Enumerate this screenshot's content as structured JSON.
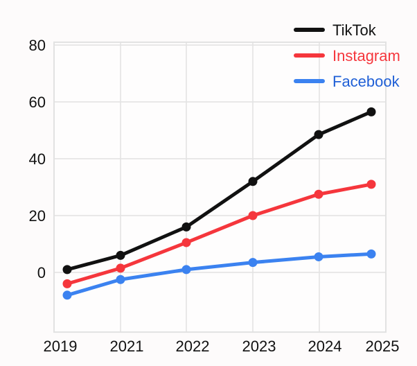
{
  "chart_data": {
    "type": "line",
    "title": "",
    "xlabel": "",
    "ylabel": "",
    "categories": [
      "2019",
      "2021",
      "2022",
      "2023",
      "2024",
      "2025"
    ],
    "y_ticks": [
      "80",
      "60",
      "40",
      "20",
      "0"
    ],
    "ylim": [
      -21,
      81
    ],
    "grid": true,
    "legend_position": "top-right",
    "series": [
      {
        "name": "TikTok",
        "color": "#111111",
        "values": [
          1,
          6,
          16,
          32,
          48.5,
          56.5
        ]
      },
      {
        "name": "Instagram",
        "color": "#f5363c",
        "values": [
          -4,
          1.5,
          10.5,
          20,
          27.5,
          31
        ]
      },
      {
        "name": "Facebook",
        "color": "#3b82f0",
        "values": [
          -8,
          -2.5,
          1,
          3.5,
          5.5,
          6.5
        ]
      }
    ]
  }
}
